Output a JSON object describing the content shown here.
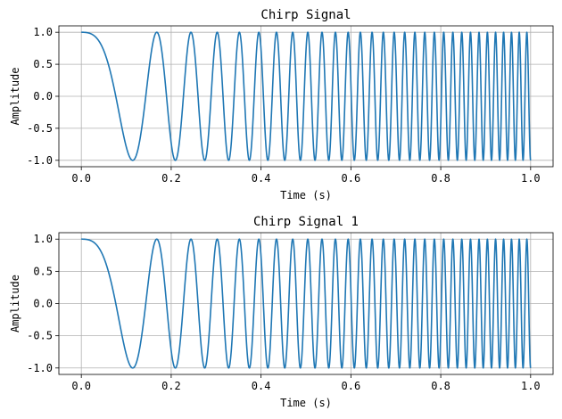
{
  "chart_data": [
    {
      "type": "line",
      "title": "Chirp Signal",
      "xlabel": "Time (s)",
      "ylabel": "Amplitude",
      "xlim": [
        -0.05,
        1.05
      ],
      "ylim": [
        -1.1,
        1.1
      ],
      "xticks": [
        0.0,
        0.2,
        0.4,
        0.6,
        0.8,
        1.0
      ],
      "xtick_labels": [
        "0.0",
        "0.2",
        "0.4",
        "0.6",
        "0.8",
        "1.0"
      ],
      "yticks": [
        1.0,
        0.5,
        0.0,
        -0.5,
        -1.0
      ],
      "ytick_labels": [
        "1.0",
        "0.5",
        "0.0",
        "-0.5",
        "-1.0"
      ],
      "grid": true,
      "color": "#1f77b4",
      "series": [
        {
          "name": "chirp",
          "function": "cos(2*pi*(f0*t + (f1-f0)/2*t^2))",
          "f0": 1,
          "f1": 60,
          "t_start": 0,
          "t_end": 1
        }
      ]
    },
    {
      "type": "line",
      "title": "Chirp Signal 1",
      "xlabel": "Time (s)",
      "ylabel": "Amplitude",
      "xlim": [
        -0.05,
        1.05
      ],
      "ylim": [
        -1.1,
        1.1
      ],
      "xticks": [
        0.0,
        0.2,
        0.4,
        0.6,
        0.8,
        1.0
      ],
      "xtick_labels": [
        "0.0",
        "0.2",
        "0.4",
        "0.6",
        "0.8",
        "1.0"
      ],
      "yticks": [
        1.0,
        0.5,
        0.0,
        -0.5,
        -1.0
      ],
      "ytick_labels": [
        "1.0",
        "0.5",
        "0.0",
        "-0.5",
        "-1.0"
      ],
      "grid": true,
      "color": "#1f77b4",
      "series": [
        {
          "name": "chirp",
          "function": "cos(2*pi*(f0*t + (f1-f0)/2*t^2))",
          "f0": 1,
          "f1": 60,
          "t_start": 0,
          "t_end": 1
        }
      ]
    }
  ]
}
